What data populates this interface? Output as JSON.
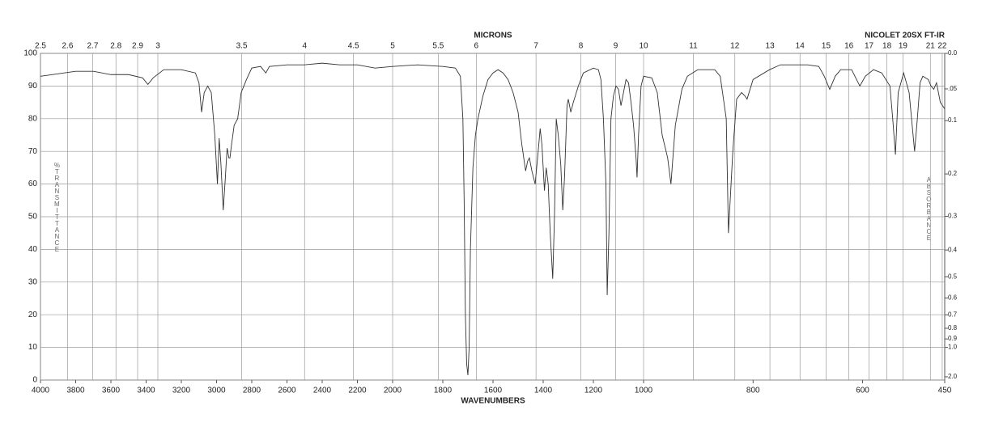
{
  "chart_data": {
    "type": "line",
    "title": "NICOLET 20SX FT-IR",
    "x2label": "MICRONS",
    "xlabel": "WAVENUMBERS",
    "ylabel": "%TRANSMITTANCE",
    "y2label": "ABSORBANCE",
    "color": "#333333",
    "xlim": [
      4000,
      450
    ],
    "x_scale_breaks": [
      2000,
      1000
    ],
    "xticks": [
      4000,
      3800,
      3600,
      3400,
      3200,
      3000,
      2800,
      2600,
      2400,
      2200,
      2000,
      1800,
      1600,
      1400,
      1200,
      1000,
      800,
      600,
      450
    ],
    "x2ticks": [
      2.5,
      2.6,
      2.7,
      2.8,
      2.9,
      3,
      3.5,
      4,
      4.5,
      5,
      5.5,
      6,
      7,
      8,
      9,
      10,
      11,
      12,
      13,
      14,
      15,
      16,
      17,
      18,
      19,
      21,
      22
    ],
    "ylim": [
      0,
      100
    ],
    "yticks": [
      0,
      10,
      20,
      30,
      40,
      50,
      60,
      70,
      80,
      90,
      100
    ],
    "y2scale": "absorbance",
    "y2ticks": [
      {
        "value": 0,
        "label": "0.0"
      },
      {
        "value": 0.05,
        "label": ".05"
      },
      0.1,
      0.2,
      0.3,
      0.4,
      0.5,
      0.6,
      0.7,
      0.8,
      0.9,
      {
        "value": 1,
        "label": "1.0"
      },
      {
        "value": 2,
        "label": "2.0"
      }
    ],
    "grid": true,
    "x": [
      4000,
      3800,
      3700,
      3600,
      3500,
      3420,
      3390,
      3360,
      3300,
      3200,
      3120,
      3100,
      3085,
      3070,
      3050,
      3030,
      3010,
      2995,
      2985,
      2975,
      2962,
      2950,
      2940,
      2930,
      2924,
      2915,
      2900,
      2880,
      2860,
      2830,
      2800,
      2750,
      2720,
      2700,
      2600,
      2500,
      2400,
      2300,
      2200,
      2100,
      2000,
      1900,
      1800,
      1750,
      1730,
      1720,
      1715,
      1710,
      1705,
      1700,
      1695,
      1690,
      1680,
      1670,
      1660,
      1640,
      1620,
      1600,
      1580,
      1560,
      1540,
      1520,
      1500,
      1485,
      1470,
      1462,
      1455,
      1445,
      1432,
      1420,
      1412,
      1405,
      1395,
      1388,
      1380,
      1372,
      1362,
      1355,
      1348,
      1340,
      1330,
      1322,
      1315,
      1305,
      1300,
      1290,
      1280,
      1260,
      1240,
      1200,
      1180,
      1170,
      1160,
      1150,
      1145,
      1138,
      1130,
      1120,
      1110,
      1100,
      1090,
      1080,
      1070,
      1060,
      1050,
      1040,
      1030,
      1026,
      1020,
      1010,
      1000,
      985,
      975,
      966,
      956,
      950,
      942,
      930,
      920,
      901,
      870,
      860,
      849,
      845,
      837,
      830,
      821,
      815,
      811,
      800,
      770,
      750,
      700,
      680,
      670,
      660,
      650,
      640,
      620,
      605,
      595,
      580,
      565,
      550,
      545,
      540,
      535,
      525,
      515,
      505,
      500,
      495,
      490,
      480,
      475,
      470,
      465,
      458,
      450
    ],
    "values": [
      93,
      94.5,
      94.5,
      93.5,
      93.5,
      92.5,
      90.5,
      92.5,
      95,
      95,
      94,
      91,
      82,
      88,
      90,
      88,
      75,
      60,
      74,
      66,
      52,
      62,
      71,
      68,
      68,
      72,
      78,
      80,
      88,
      92,
      95.5,
      96,
      94,
      96,
      96.5,
      96.5,
      97,
      96.5,
      96.5,
      95.5,
      96,
      96.5,
      96,
      95.5,
      93,
      80,
      55,
      20,
      5,
      1.5,
      10,
      40,
      65,
      75,
      80,
      87,
      92,
      94,
      95,
      94,
      92,
      88,
      82,
      72,
      64,
      67,
      68,
      64,
      60,
      70,
      77,
      72,
      58,
      65,
      60,
      45,
      31,
      50,
      80,
      75,
      66,
      52,
      62,
      84,
      86,
      82,
      85,
      90,
      94,
      95.5,
      95,
      92,
      80,
      60,
      26,
      45,
      80,
      87,
      90,
      89,
      84,
      88,
      92,
      91,
      85,
      78,
      68,
      62,
      75,
      90,
      93,
      92.5,
      88,
      75,
      68,
      60,
      78,
      89,
      93,
      95,
      95,
      93,
      80,
      45,
      70,
      86,
      88,
      87,
      86,
      92,
      95,
      96.5,
      96.5,
      96,
      93,
      89,
      93,
      95,
      95,
      90,
      93,
      95,
      94,
      90,
      80,
      69,
      88,
      94,
      88,
      70,
      80,
      91,
      93,
      92,
      90,
      89,
      91,
      85,
      83
    ]
  }
}
